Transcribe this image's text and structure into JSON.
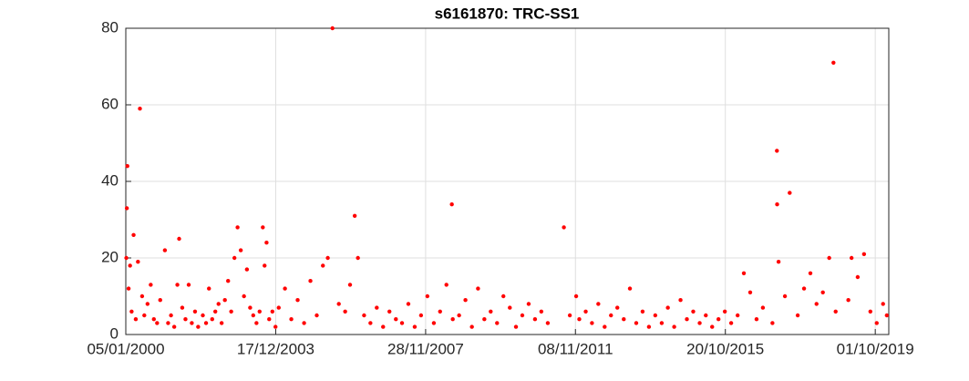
{
  "chart_data": {
    "type": "scatter",
    "title": "s6161870: TRC-SS1",
    "color": "#ff0000",
    "grid": true,
    "xlim": [
      "2000-01-05",
      "2020-02-08"
    ],
    "xticks": [
      {
        "value": "2000-01-05",
        "label": "05/01/2000"
      },
      {
        "value": "2003-12-17",
        "label": "17/12/2003"
      },
      {
        "value": "2007-11-28",
        "label": "28/11/2007"
      },
      {
        "value": "2011-11-08",
        "label": "08/11/2011"
      },
      {
        "value": "2015-10-20",
        "label": "20/10/2015"
      },
      {
        "value": "2019-10-01",
        "label": "01/10/2019"
      }
    ],
    "ylim": [
      0,
      80
    ],
    "yticks": [
      0,
      20,
      40,
      60,
      80
    ],
    "x": [
      "2000-01-10",
      "2000-01-15",
      "2000-01-20",
      "2000-02-01",
      "2000-02-15",
      "2000-03-01",
      "2000-03-20",
      "2000-04-10",
      "2000-05-01",
      "2000-05-20",
      "2000-06-10",
      "2000-07-01",
      "2000-08-01",
      "2000-09-01",
      "2000-10-01",
      "2000-11-01",
      "2000-12-01",
      "2001-01-15",
      "2001-02-15",
      "2001-03-15",
      "2001-04-15",
      "2001-05-15",
      "2001-06-01",
      "2001-07-01",
      "2001-08-01",
      "2001-09-01",
      "2001-10-01",
      "2001-11-01",
      "2001-12-01",
      "2002-01-15",
      "2002-02-15",
      "2002-03-15",
      "2002-04-15",
      "2002-05-15",
      "2002-06-15",
      "2002-07-15",
      "2002-08-15",
      "2002-09-15",
      "2002-10-15",
      "2002-11-15",
      "2002-12-15",
      "2003-01-15",
      "2003-02-15",
      "2003-03-15",
      "2003-04-15",
      "2003-05-15",
      "2003-06-15",
      "2003-07-15",
      "2003-08-15",
      "2003-09-01",
      "2003-09-20",
      "2003-10-15",
      "2003-11-15",
      "2003-12-15",
      "2004-01-15",
      "2004-03-15",
      "2004-05-15",
      "2004-07-15",
      "2004-09-15",
      "2004-11-15",
      "2005-01-15",
      "2005-03-15",
      "2005-05-01",
      "2005-06-15",
      "2005-08-15",
      "2005-10-15",
      "2005-12-01",
      "2006-01-15",
      "2006-02-15",
      "2006-04-15",
      "2006-06-15",
      "2006-08-15",
      "2006-10-15",
      "2006-12-15",
      "2007-02-15",
      "2007-04-15",
      "2007-06-15",
      "2007-08-15",
      "2007-10-15",
      "2007-12-15",
      "2008-02-15",
      "2008-04-15",
      "2008-06-15",
      "2008-08-06",
      "2008-08-15",
      "2008-10-15",
      "2008-12-15",
      "2009-02-15",
      "2009-04-15",
      "2009-06-15",
      "2009-08-15",
      "2009-10-15",
      "2009-12-15",
      "2010-02-15",
      "2010-04-15",
      "2010-06-15",
      "2010-08-15",
      "2010-10-15",
      "2010-12-15",
      "2011-02-15",
      "2011-07-20",
      "2011-09-15",
      "2011-11-15",
      "2011-12-15",
      "2012-02-15",
      "2012-04-15",
      "2012-06-15",
      "2012-08-15",
      "2012-10-15",
      "2012-12-15",
      "2013-02-15",
      "2013-04-15",
      "2013-06-15",
      "2013-08-15",
      "2013-10-15",
      "2013-12-15",
      "2014-02-15",
      "2014-04-15",
      "2014-06-15",
      "2014-08-15",
      "2014-10-15",
      "2014-12-15",
      "2015-02-15",
      "2015-04-15",
      "2015-06-15",
      "2015-08-15",
      "2015-10-15",
      "2015-12-15",
      "2016-02-15",
      "2016-04-15",
      "2016-06-15",
      "2016-08-15",
      "2016-10-15",
      "2017-01-15",
      "2017-02-27",
      "2017-03-01",
      "2017-03-15",
      "2017-05-15",
      "2017-06-30",
      "2017-09-15",
      "2017-11-15",
      "2018-01-15",
      "2018-03-15",
      "2018-05-15",
      "2018-07-15",
      "2018-08-25",
      "2018-09-15",
      "2019-01-15",
      "2019-02-15",
      "2019-04-15",
      "2019-06-15",
      "2019-08-15",
      "2019-10-15",
      "2019-12-15",
      "2020-01-20"
    ],
    "values": [
      20,
      33,
      44,
      12,
      18,
      6,
      26,
      4,
      19,
      59,
      10,
      5,
      8,
      13,
      4,
      3,
      9,
      22,
      3,
      5,
      2,
      13,
      25,
      7,
      4,
      13,
      3,
      6,
      2,
      5,
      3,
      12,
      4,
      6,
      8,
      3,
      9,
      14,
      6,
      20,
      28,
      22,
      10,
      17,
      7,
      5,
      3,
      6,
      28,
      18,
      24,
      4,
      6,
      2,
      7,
      12,
      4,
      9,
      3,
      14,
      5,
      18,
      20,
      80,
      8,
      6,
      13,
      31,
      20,
      5,
      3,
      7,
      2,
      6,
      4,
      3,
      8,
      2,
      5,
      10,
      3,
      6,
      13,
      34,
      4,
      5,
      9,
      2,
      12,
      4,
      6,
      3,
      10,
      7,
      2,
      5,
      8,
      4,
      6,
      3,
      28,
      5,
      10,
      4,
      6,
      3,
      8,
      2,
      5,
      7,
      4,
      12,
      3,
      6,
      2,
      5,
      3,
      7,
      2,
      9,
      4,
      6,
      3,
      5,
      2,
      4,
      6,
      3,
      5,
      16,
      11,
      4,
      7,
      3,
      48,
      34,
      19,
      10,
      37,
      5,
      12,
      16,
      8,
      11,
      20,
      71,
      6,
      9,
      20,
      15,
      21,
      6,
      3,
      8,
      5
    ]
  }
}
